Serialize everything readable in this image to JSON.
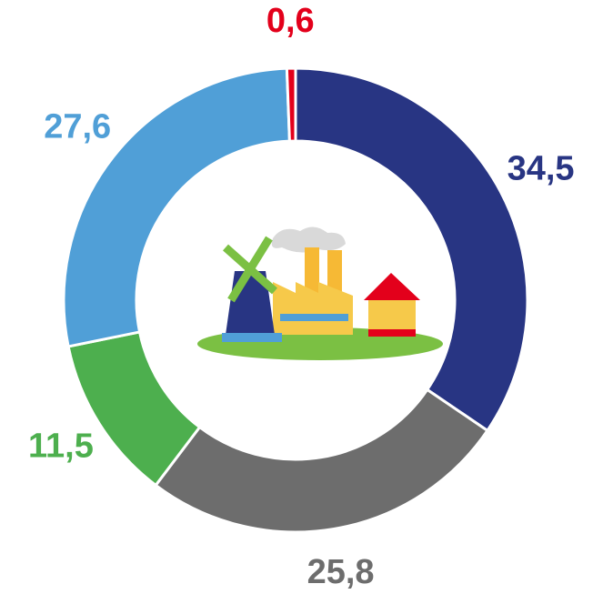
{
  "chart_data": {
    "type": "donut",
    "values": [
      34.5,
      25.8,
      11.5,
      27.6,
      0.6
    ],
    "value_labels": [
      "34,5",
      "25,8",
      "11,5",
      "27,6",
      "0,6"
    ],
    "colors": [
      "#283583",
      "#6d6d6d",
      "#4daf4e",
      "#509fd7",
      "#e3001b"
    ]
  }
}
